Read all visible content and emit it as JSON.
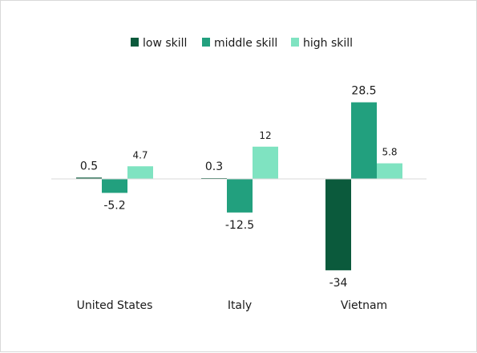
{
  "chart_data": {
    "type": "bar",
    "categories": [
      "United States",
      "Italy",
      "Vietnam"
    ],
    "series": [
      {
        "name": "low skill",
        "values": [
          0.5,
          0.3,
          -34
        ],
        "color": "#0b5a3c"
      },
      {
        "name": "middle skill",
        "values": [
          -5.2,
          -12.5,
          28.5
        ],
        "color": "#22a07e"
      },
      {
        "name": "high skill",
        "values": [
          4.7,
          12,
          5.8
        ],
        "color": "#7fe3c1"
      }
    ],
    "data_labels": [
      [
        "0.5",
        "0.3",
        "-34"
      ],
      [
        "-5.2",
        "-12.5",
        "28.5"
      ],
      [
        "4.7",
        "12",
        "5.8"
      ]
    ],
    "legend_position": "top",
    "grid": false,
    "ylim": [
      -34,
      28.5
    ]
  }
}
